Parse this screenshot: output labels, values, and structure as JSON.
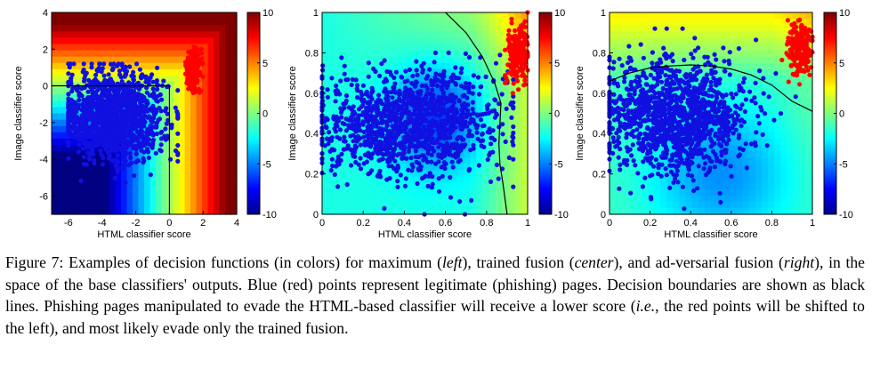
{
  "chart_data": [
    {
      "type": "scatter",
      "subtitle": "maximum",
      "xlabel": "HTML classifier score",
      "ylabel": "Image classifier score",
      "xlim": [
        -7,
        4
      ],
      "ylim": [
        -7,
        4
      ],
      "xticks": [
        -6,
        -4,
        -2,
        0,
        2,
        4
      ],
      "yticks": [
        -6,
        -4,
        -2,
        0,
        2,
        4
      ],
      "background": "decision function heatmap (colors)",
      "boundary": "max(x, y) = 0",
      "series": [
        {
          "name": "legitimate",
          "color": "#1010e0",
          "center": [
            -3.3,
            -1.6
          ],
          "spread": [
            1.5,
            1.2
          ],
          "range_x": [
            -6,
            0.5
          ],
          "range_y": [
            -6.8,
            1.2
          ],
          "count": 1300
        },
        {
          "name": "phishing",
          "color": "#ff0000",
          "center": [
            1.4,
            0.9
          ],
          "spread": [
            0.22,
            0.55
          ],
          "range_x": [
            0.8,
            2.0
          ],
          "range_y": [
            -0.4,
            2.5
          ],
          "count": 220
        }
      ],
      "colorbar": {
        "min": -10,
        "max": 10,
        "ticks": [
          10,
          5,
          0,
          -5,
          -10
        ]
      }
    },
    {
      "type": "scatter",
      "subtitle": "trained fusion",
      "xlabel": "HTML classifier score",
      "ylabel": "Image classifier score",
      "xlim": [
        0,
        1
      ],
      "ylim": [
        0,
        1
      ],
      "xticks": [
        0,
        0.2,
        0.4,
        0.6,
        0.8,
        1
      ],
      "yticks": [
        0,
        0.2,
        0.4,
        0.6,
        0.8,
        1
      ],
      "background": "decision function heatmap (colors)",
      "boundary": [
        [
          0.6,
          1.0
        ],
        [
          0.7,
          0.9
        ],
        [
          0.78,
          0.78
        ],
        [
          0.84,
          0.65
        ],
        [
          0.87,
          0.55
        ],
        [
          0.865,
          0.45
        ],
        [
          0.86,
          0.35
        ],
        [
          0.865,
          0.25
        ],
        [
          0.88,
          0.15
        ],
        [
          0.9,
          0.0
        ]
      ],
      "series": [
        {
          "name": "legitimate",
          "color": "#1010e0",
          "center": [
            0.42,
            0.45
          ],
          "spread": [
            0.22,
            0.13
          ],
          "range_x": [
            0.0,
            0.93
          ],
          "range_y": [
            0.0,
            0.8
          ],
          "count": 1300
        },
        {
          "name": "phishing",
          "color": "#ff0000",
          "center": [
            0.95,
            0.8
          ],
          "spread": [
            0.025,
            0.07
          ],
          "range_x": [
            0.89,
            1.0
          ],
          "range_y": [
            0.6,
            1.0
          ],
          "count": 220
        }
      ],
      "colorbar": {
        "min": -10,
        "max": 10,
        "ticks": [
          10,
          5,
          0,
          -5,
          -10
        ]
      }
    },
    {
      "type": "scatter",
      "subtitle": "adversarial fusion",
      "xlabel": "HTML classifier score",
      "ylabel": "Image classifier score",
      "xlim": [
        0,
        1
      ],
      "ylim": [
        0,
        1
      ],
      "xticks": [
        0,
        0.2,
        0.4,
        0.6,
        0.8,
        1
      ],
      "yticks": [
        0,
        0.2,
        0.4,
        0.6,
        0.8,
        1
      ],
      "background": "decision function heatmap (colors)",
      "boundary": [
        [
          0.0,
          0.66
        ],
        [
          0.1,
          0.7
        ],
        [
          0.2,
          0.725
        ],
        [
          0.3,
          0.735
        ],
        [
          0.4,
          0.74
        ],
        [
          0.5,
          0.735
        ],
        [
          0.6,
          0.72
        ],
        [
          0.7,
          0.69
        ],
        [
          0.8,
          0.64
        ],
        [
          0.9,
          0.56
        ],
        [
          1.0,
          0.51
        ]
      ],
      "series": [
        {
          "name": "legitimate",
          "color": "#1010e0",
          "center": [
            0.32,
            0.48
          ],
          "spread": [
            0.18,
            0.14
          ],
          "range_x": [
            0.0,
            0.92
          ],
          "range_y": [
            0.0,
            0.92
          ],
          "count": 1300
        },
        {
          "name": "phishing",
          "color": "#ff0000",
          "center": [
            0.94,
            0.82
          ],
          "spread": [
            0.03,
            0.06
          ],
          "range_x": [
            0.85,
            1.0
          ],
          "range_y": [
            0.6,
            1.0
          ],
          "count": 220
        }
      ],
      "colorbar": {
        "min": -10,
        "max": 10,
        "ticks": [
          10,
          5,
          0,
          -5,
          -10
        ]
      }
    }
  ],
  "caption": {
    "label": "Figure 7:",
    "p1": "Examples of decision functions (in colors) for maximum (",
    "left": "left",
    "p2": "), trained fusion (",
    "center": "center",
    "p3": "), and ad-versarial fusion (",
    "right": "right",
    "p4": "), in the space of the base classifiers' outputs. Blue (red) points represent legitimate (phishing) pages. Decision boundaries are shown as black lines. Phishing pages manipulated to evade the HTML-based classifier will receive a lower score (",
    "ie": "i.e.",
    "p5": ", the red points will be shifted to the left), and most likely evade only the trained fusion."
  }
}
